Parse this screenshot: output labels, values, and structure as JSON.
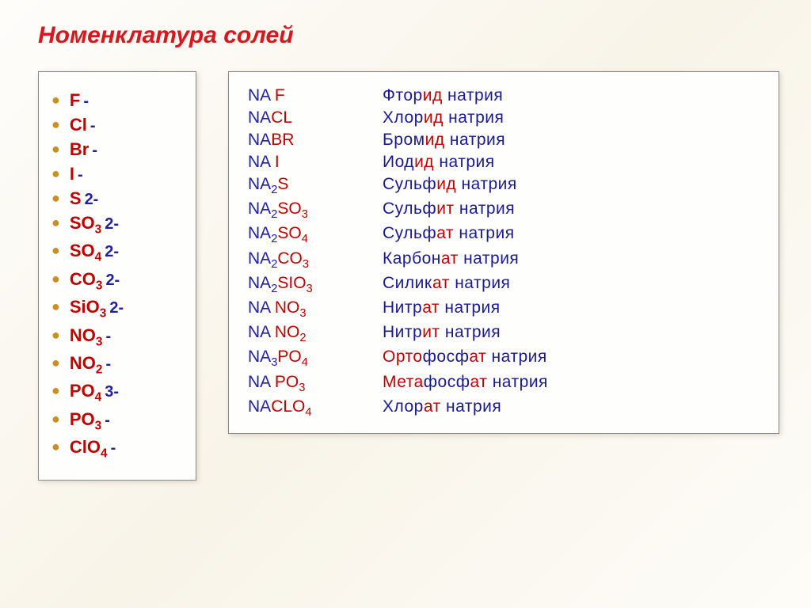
{
  "title": "Номенклатура солей",
  "anions": [
    {
      "symbol": "F",
      "charge": "-"
    },
    {
      "symbol": "Cl",
      "charge": "-"
    },
    {
      "symbol": "Br",
      "charge": "-"
    },
    {
      "symbol": "I",
      "charge": "-"
    },
    {
      "symbol": "S",
      "charge": "2-"
    },
    {
      "symbol": "SO",
      "sub": "3",
      "charge": "2-"
    },
    {
      "symbol": "SO",
      "sub": "4",
      "charge": "2-"
    },
    {
      "symbol": "CO",
      "sub": "3",
      "charge": "2-"
    },
    {
      "symbol": "SiO",
      "sub": "3",
      "charge": "2-"
    },
    {
      "symbol": "NO",
      "sub": "3",
      "charge": "-"
    },
    {
      "symbol": "NO",
      "sub": "2",
      "charge": "-"
    },
    {
      "symbol": "PO",
      "sub": "4",
      "charge": "3-"
    },
    {
      "symbol": "PO",
      "sub": "3",
      "charge": "-"
    },
    {
      "symbol": "ClO",
      "sub": "4",
      "charge": "-"
    }
  ],
  "salts": [
    {
      "cation": "Na",
      "anion": "F",
      "name_prefix": "",
      "name_stem": "Фтор",
      "name_suffix": "ид",
      "name_tail": " натрия",
      "spacer": " "
    },
    {
      "cation": "Na",
      "anion": "Cl",
      "name_prefix": "",
      "name_stem": "Хлор",
      "name_suffix": "ид",
      "name_tail": " натрия",
      "caps": true
    },
    {
      "cation": "Na",
      "anion": "Br",
      "name_prefix": "",
      "name_stem": "Бром",
      "name_suffix": "ид",
      "name_tail": " натрия",
      "caps": true
    },
    {
      "cation": "Na",
      "anion": "I",
      "name_prefix": "",
      "name_stem": "Иод",
      "name_suffix": "ид",
      "name_tail": " натрия",
      "spacer": " "
    },
    {
      "cation": "Na",
      "cat_sub": "2",
      "anion": "S",
      "name_prefix": "",
      "name_stem": "Сульф",
      "name_suffix": "ид",
      "name_tail": " натрия"
    },
    {
      "cation": "Na",
      "cat_sub": "2",
      "anion": "SO",
      "an_sub": "3",
      "name_prefix": "",
      "name_stem": "Сульф",
      "name_suffix": "ит",
      "name_tail": " натрия"
    },
    {
      "cation": "Na",
      "cat_sub": "2",
      "anion": "SO",
      "an_sub": "4",
      "name_prefix": "",
      "name_stem": "Сульф",
      "name_suffix": "ат",
      "name_tail": " натрия"
    },
    {
      "cation": "Na",
      "cat_sub": "2",
      "anion": "CO",
      "an_sub": "3",
      "name_prefix": "",
      "name_stem": "Карбон",
      "name_suffix": "ат",
      "name_tail": " натрия"
    },
    {
      "cation": "Na",
      "cat_sub": "2",
      "anion": "SiO",
      "an_sub": "3",
      "name_prefix": "",
      "name_stem": "Силик",
      "name_suffix": "ат",
      "name_tail": " натрия"
    },
    {
      "cation": "Na",
      "anion": "NO",
      "an_sub": "3",
      "name_prefix": "",
      "name_stem": "Нитр",
      "name_suffix": "ат",
      "name_tail": " натрия",
      "spacer": " "
    },
    {
      "cation": "Na",
      "anion": "NO",
      "an_sub": "2",
      "name_prefix": "",
      "name_stem": "Нитр",
      "name_suffix": "ит",
      "name_tail": " натрия",
      "spacer": " "
    },
    {
      "cation": "Na",
      "cat_sub": "3",
      "anion": "PO",
      "an_sub": "4",
      "name_prefix": "Орто",
      "name_stem": "фосф",
      "name_suffix": "ат",
      "name_tail": " натрия"
    },
    {
      "cation": "Na",
      "anion": "PO",
      "an_sub": "3",
      "name_prefix": "Мета",
      "name_stem": "фосф",
      "name_suffix": "ат",
      "name_tail": " натрия",
      "spacer": " "
    },
    {
      "cation": "Na",
      "anion": "ClO",
      "an_sub": "4",
      "name_prefix": "",
      "name_stem": "Хлор",
      "name_suffix": "ат",
      "name_tail": " натрия",
      "caps": true
    }
  ],
  "colors": {
    "title": "#d41820",
    "bullet": "#c89020",
    "anion": "#c00000",
    "cation": "#2020a0",
    "name_blue": "#1a1a90",
    "border": "#888888",
    "bg_start": "#fefdfb",
    "bg_end": "#f8f4e8"
  },
  "fonts": {
    "title_size_pt": 22,
    "body_size_pt": 16,
    "family": "Arial"
  }
}
